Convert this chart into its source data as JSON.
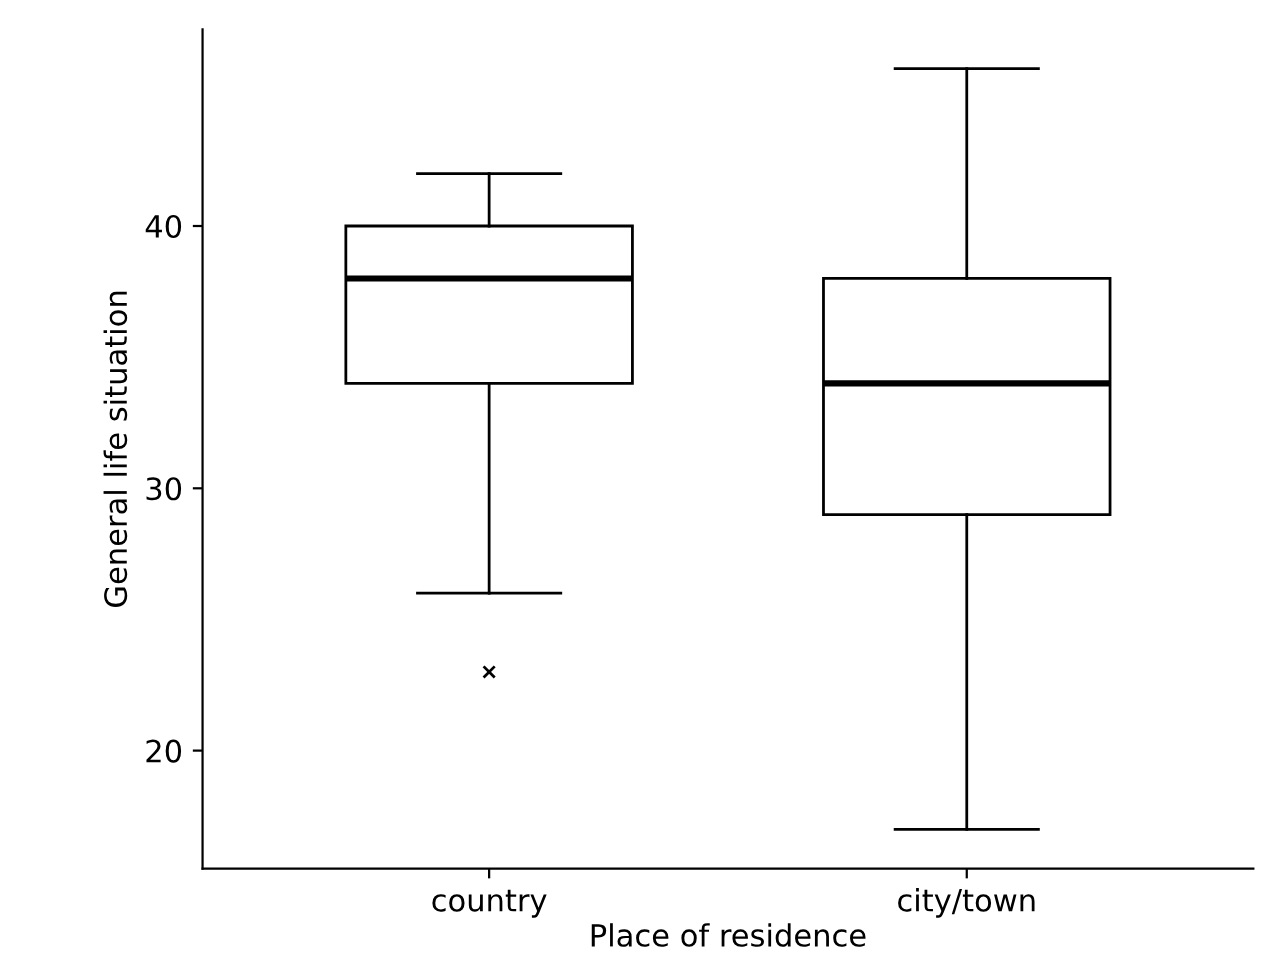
{
  "chart_data": {
    "type": "box",
    "xlabel": "Place of residence",
    "ylabel": "General life situation",
    "categories": [
      "country",
      "city/town"
    ],
    "boxes": [
      {
        "low": 26,
        "q1": 34,
        "median": 38,
        "q3": 40,
        "high": 42,
        "outliers": [
          23
        ]
      },
      {
        "low": 17,
        "q1": 29,
        "median": 34,
        "q3": 38,
        "high": 46
      }
    ],
    "color": "#ffffff",
    "ylim": [
      15.5,
      47.5
    ],
    "yticks": [
      20,
      30,
      40
    ],
    "grid": false,
    "marker": "cross"
  }
}
